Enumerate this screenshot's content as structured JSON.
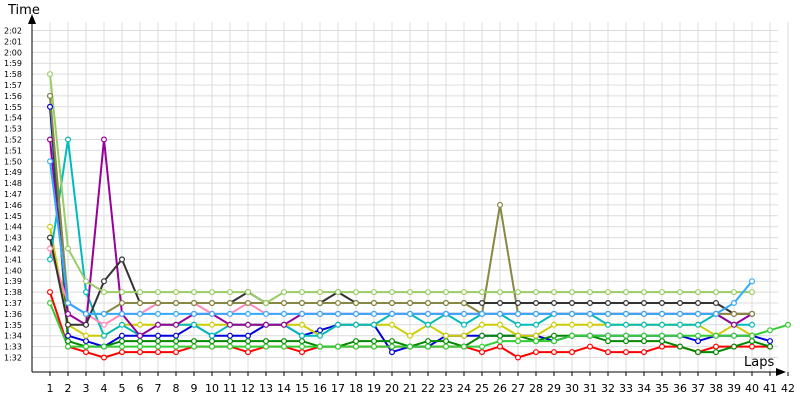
{
  "chart_data": {
    "type": "line",
    "xlabel": "Laps",
    "ylabel": "Time",
    "x": [
      1,
      2,
      3,
      4,
      5,
      6,
      7,
      8,
      9,
      10,
      11,
      12,
      13,
      14,
      15,
      16,
      17,
      18,
      19,
      20,
      21,
      22,
      23,
      24,
      25,
      26,
      27,
      28,
      29,
      30,
      31,
      32,
      33,
      34,
      35,
      36,
      37,
      38,
      39,
      40,
      41,
      42
    ],
    "xlim": [
      0,
      42
    ],
    "y_unit": "seconds",
    "ylim": [
      91,
      123
    ],
    "y_ticks": [
      92,
      93,
      94,
      95,
      96,
      97,
      98,
      99,
      100,
      101,
      102,
      103,
      104,
      105,
      106,
      107,
      108,
      109,
      110,
      111,
      112,
      113,
      114,
      115,
      116,
      117,
      118,
      119,
      120,
      121,
      122
    ],
    "y_tick_labels": [
      "1:32",
      "1:33",
      "1:34",
      "1:35",
      "1:36",
      "1:37",
      "1:38",
      "1:39",
      "1:40",
      "1:41",
      "1:42",
      "1:43",
      "1:44",
      "1:45",
      "1:46",
      "1:47",
      "1:48",
      "1:49",
      "1:50",
      "1:51",
      "1:52",
      "1:53",
      "1:54",
      "1:55",
      "1:56",
      "1:57",
      "1:58",
      "1:59",
      "2:00",
      "2:01",
      "2:02"
    ],
    "grid": true,
    "series": [
      {
        "color": "#ff0000",
        "values": [
          98,
          93,
          92.5,
          92,
          92.5,
          92.5,
          92.5,
          92.5,
          93,
          93,
          93,
          92.5,
          93,
          93,
          92.5,
          93,
          93,
          93,
          93,
          93,
          93,
          93,
          93,
          93,
          92.5,
          93,
          92,
          92.5,
          92.5,
          92.5,
          93,
          92.5,
          92.5,
          92.5,
          93,
          93,
          92.5,
          93,
          93,
          93,
          93,
          null
        ]
      },
      {
        "color": "#0000dd",
        "values": [
          115,
          94,
          93.5,
          93,
          94,
          94,
          94,
          94,
          95,
          94,
          94,
          94,
          95,
          95,
          94,
          94.5,
          95,
          95,
          95,
          92.5,
          93,
          93,
          94,
          94,
          94,
          94,
          94,
          94,
          93.5,
          94,
          94,
          94,
          94,
          94,
          94,
          94,
          93.5,
          94,
          94,
          94,
          93.5,
          null
        ]
      },
      {
        "color": "#008800",
        "values": [
          116,
          93.5,
          93,
          93,
          93.5,
          93.5,
          93.5,
          93.5,
          93.5,
          93.5,
          93.5,
          93.5,
          93.5,
          93.5,
          93.5,
          93,
          93,
          93.5,
          93.5,
          93.5,
          93,
          93.5,
          93.5,
          93,
          94,
          94,
          94,
          93.5,
          94,
          94,
          94,
          93.5,
          93.5,
          93.5,
          93.5,
          93,
          92.5,
          92.5,
          93,
          93.5,
          93,
          null
        ]
      },
      {
        "color": "#cccc00",
        "values": [
          104,
          95,
          94,
          94,
          95,
          95,
          95,
          95,
          95,
          95,
          95,
          95,
          95,
          95,
          95,
          94,
          95,
          95,
          95,
          95,
          94,
          95,
          94,
          94,
          95,
          95,
          94,
          94,
          95,
          95,
          95,
          95,
          95,
          95,
          95,
          95,
          95,
          94,
          95,
          94,
          null,
          null
        ]
      },
      {
        "color": "#00bbbb",
        "values": [
          101,
          112,
          98,
          94,
          95,
          94,
          95,
          95,
          95,
          94,
          95,
          95,
          95,
          95,
          94,
          94,
          95,
          95,
          95,
          96,
          96,
          95,
          96,
          95,
          96,
          96,
          95,
          95,
          96,
          96,
          96,
          95,
          95,
          95,
          95,
          95,
          95,
          96,
          95,
          95,
          null,
          null
        ]
      },
      {
        "color": "#990099",
        "values": [
          112,
          96,
          95,
          112,
          96,
          94,
          95,
          95,
          96,
          96,
          95,
          95,
          95,
          95,
          96,
          96,
          96,
          96,
          96,
          96,
          96,
          96,
          96,
          96,
          96,
          96,
          96,
          96,
          96,
          96,
          96,
          96,
          96,
          96,
          96,
          96,
          96,
          96,
          95,
          96,
          null,
          null
        ]
      },
      {
        "color": "#ff88bb",
        "values": [
          102,
          97,
          96,
          95,
          96,
          96,
          97,
          97,
          97,
          96,
          96,
          97,
          96,
          96,
          96,
          96,
          96,
          96,
          96,
          96,
          96,
          96,
          96,
          96,
          96,
          96,
          96,
          96,
          96,
          96,
          96,
          96,
          96,
          96,
          96,
          96,
          96,
          96,
          96,
          96,
          null,
          null
        ]
      },
      {
        "color": "#33cc33",
        "values": [
          97,
          93,
          93,
          93,
          93,
          93,
          93,
          93,
          93,
          93,
          93,
          93,
          93,
          93,
          93,
          93,
          93,
          93,
          93,
          93,
          93,
          93,
          93,
          93,
          93,
          93.5,
          93.5,
          93.5,
          93.5,
          94,
          94,
          94,
          94,
          94,
          94,
          94,
          94,
          94,
          94,
          94,
          94.5,
          95
        ]
      },
      {
        "color": "#333333",
        "values": [
          103,
          95,
          95,
          99,
          101,
          97,
          97,
          97,
          97,
          97,
          97,
          98,
          97,
          97,
          97,
          97,
          98,
          97,
          97,
          97,
          97,
          97,
          97,
          97,
          97,
          97,
          97,
          97,
          97,
          97,
          97,
          97,
          97,
          97,
          97,
          97,
          97,
          97,
          96,
          96,
          null,
          null
        ]
      },
      {
        "color": "#888844",
        "values": [
          116,
          97,
          96,
          96,
          97,
          97,
          97,
          97,
          97,
          97,
          97,
          97,
          97,
          97,
          97,
          97,
          97,
          97,
          97,
          97,
          97,
          97,
          97,
          97,
          96,
          106,
          96,
          96,
          96,
          96,
          96,
          96,
          96,
          96,
          96,
          96,
          96,
          96,
          96,
          96,
          null,
          null
        ]
      },
      {
        "color": "#99cc66",
        "values": [
          118,
          102,
          99,
          98,
          98,
          98,
          98,
          98,
          98,
          98,
          98,
          98,
          97,
          98,
          98,
          98,
          98,
          98,
          98,
          98,
          98,
          98,
          98,
          98,
          98,
          98,
          98,
          98,
          98,
          98,
          98,
          98,
          98,
          98,
          98,
          98,
          98,
          98,
          98,
          98,
          null,
          null
        ]
      },
      {
        "color": "#33aaff",
        "values": [
          110,
          97,
          96,
          96,
          96,
          96,
          96,
          96,
          96,
          96,
          96,
          96,
          96,
          96,
          96,
          96,
          96,
          96,
          96,
          96,
          96,
          96,
          96,
          96,
          96,
          96,
          96,
          96,
          96,
          96,
          96,
          96,
          96,
          96,
          96,
          96,
          96,
          96,
          97,
          99,
          null,
          null
        ]
      }
    ]
  }
}
